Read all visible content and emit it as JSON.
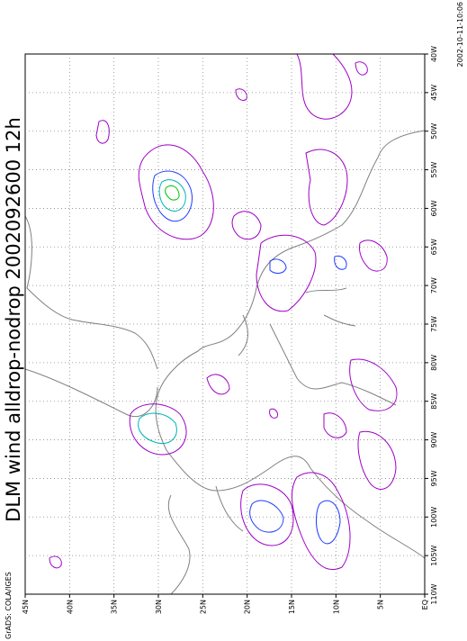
{
  "title": "DLM wind alldrop-nodrop 2002092600 12h",
  "lat_labels": [
    "45N",
    "40N",
    "35N",
    "30N",
    "25N",
    "20N",
    "15N",
    "10N",
    "5N",
    "EQ"
  ],
  "lon_labels": [
    "40W",
    "45W",
    "50W",
    "55W",
    "60W",
    "65W",
    "70W",
    "75W",
    "80W",
    "85W",
    "90W",
    "95W",
    "100W",
    "105W",
    "110W"
  ],
  "footer_left": "GrADS: COLA/IGES",
  "footer_right": "2002-10-11-10:06"
}
